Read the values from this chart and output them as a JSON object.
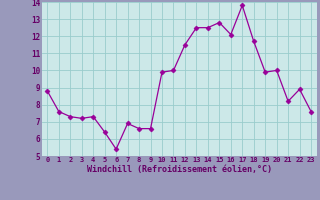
{
  "x": [
    0,
    1,
    2,
    3,
    4,
    5,
    6,
    7,
    8,
    9,
    10,
    11,
    12,
    13,
    14,
    15,
    16,
    17,
    18,
    19,
    20,
    21,
    22,
    23
  ],
  "y": [
    8.8,
    7.6,
    7.3,
    7.2,
    7.3,
    6.4,
    5.4,
    6.9,
    6.6,
    6.6,
    9.9,
    10.0,
    11.5,
    12.5,
    12.5,
    12.8,
    12.1,
    13.8,
    11.7,
    9.9,
    10.0,
    8.2,
    8.9,
    7.6
  ],
  "xlabel": "Windchill (Refroidissement éolien,°C)",
  "ylim": [
    5,
    14
  ],
  "xlim": [
    -0.5,
    23.5
  ],
  "yticks": [
    5,
    6,
    7,
    8,
    9,
    10,
    11,
    12,
    13,
    14
  ],
  "xticks": [
    0,
    1,
    2,
    3,
    4,
    5,
    6,
    7,
    8,
    9,
    10,
    11,
    12,
    13,
    14,
    15,
    16,
    17,
    18,
    19,
    20,
    21,
    22,
    23
  ],
  "line_color": "#990099",
  "marker": "D",
  "marker_size": 2.5,
  "bg_color": "#cce8e8",
  "grid_color": "#99cccc",
  "label_color": "#660066",
  "xlabel_color": "#660066",
  "fig_bg": "#9999bb"
}
